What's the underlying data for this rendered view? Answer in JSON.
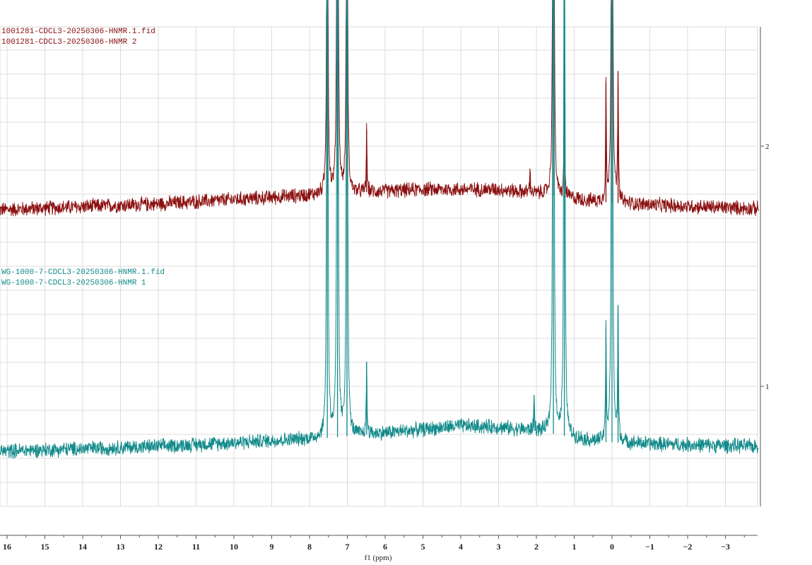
{
  "chart_data": {
    "type": "line",
    "title": "",
    "xlabel": "f1 (ppm)",
    "ylabel": "",
    "xlim": [
      16.2,
      -3.87
    ],
    "ylim": [
      0.5,
      2.5
    ],
    "grid": true,
    "x_ticks": [
      16,
      15,
      14,
      13,
      12,
      11,
      10,
      9,
      8,
      7,
      6,
      5,
      4,
      3,
      2,
      1,
      0,
      -1,
      -2,
      -3
    ],
    "x_tick_labels": [
      "16",
      "15",
      "14",
      "13",
      "12",
      "11",
      "10",
      "9",
      "8",
      "7",
      "6",
      "5",
      "4",
      "3",
      "2",
      "1",
      "0",
      "−1",
      "−2",
      "−3"
    ],
    "y_ticks": [
      1,
      2
    ],
    "y_tick_labels": [
      "1",
      "2"
    ],
    "series": [
      {
        "name": "1001281-CDCL3-20250306-HNMR 2",
        "legend": [
          "1001281-CDCL3-20250306-HNMR.1.fid",
          "1001281-CDCL3-20250306-HNMR 2"
        ],
        "color": "#8b1010",
        "baseline": [
          [
            16.2,
            1.735
          ],
          [
            12,
            1.76
          ],
          [
            7.5,
            1.8
          ],
          [
            5,
            1.82
          ],
          [
            3,
            1.82
          ],
          [
            1.8,
            1.8
          ],
          [
            0.5,
            1.77
          ],
          [
            -1,
            1.755
          ],
          [
            -3.87,
            1.74
          ]
        ],
        "noise": 0.035,
        "peaks": [
          {
            "ppm": 7.53,
            "height": 3.5
          },
          {
            "ppm": 7.26,
            "height": 5.0
          },
          {
            "ppm": 7.01,
            "height": 3.5
          },
          {
            "ppm": 6.49,
            "height": 0.26
          },
          {
            "ppm": 2.17,
            "height": 0.1
          },
          {
            "ppm": 1.55,
            "height": 5.0
          },
          {
            "ppm": 1.26,
            "height": 0.45
          },
          {
            "ppm": 0.16,
            "height": 0.5
          },
          {
            "ppm": 0.0,
            "height": 5.0
          },
          {
            "ppm": -0.16,
            "height": 0.55
          }
        ]
      },
      {
        "name": "WG-1000-7-CDCL3-20250306-HNMR 1",
        "legend": [
          "WG-1000-7-CDCL3-20250306-HNMR.1.fid",
          "WG-1000-7-CDCL3-20250306-HNMR 1"
        ],
        "color": "#138a8a",
        "baseline": [
          [
            16.2,
            0.73
          ],
          [
            12,
            0.75
          ],
          [
            7.5,
            0.785
          ],
          [
            4,
            0.835
          ],
          [
            3,
            0.83
          ],
          [
            1.8,
            0.81
          ],
          [
            0.5,
            0.77
          ],
          [
            -1,
            0.76
          ],
          [
            -3.87,
            0.75
          ]
        ],
        "noise": 0.035,
        "peaks": [
          {
            "ppm": 7.53,
            "height": 5.0
          },
          {
            "ppm": 7.26,
            "height": 6.0
          },
          {
            "ppm": 7.01,
            "height": 5.0
          },
          {
            "ppm": 6.49,
            "height": 0.3
          },
          {
            "ppm": 2.06,
            "height": 0.15
          },
          {
            "ppm": 1.55,
            "height": 6.0
          },
          {
            "ppm": 1.26,
            "height": 5.0
          },
          {
            "ppm": 0.16,
            "height": 0.48
          },
          {
            "ppm": 0.0,
            "height": 6.0
          },
          {
            "ppm": -0.16,
            "height": 0.57
          }
        ]
      }
    ]
  }
}
